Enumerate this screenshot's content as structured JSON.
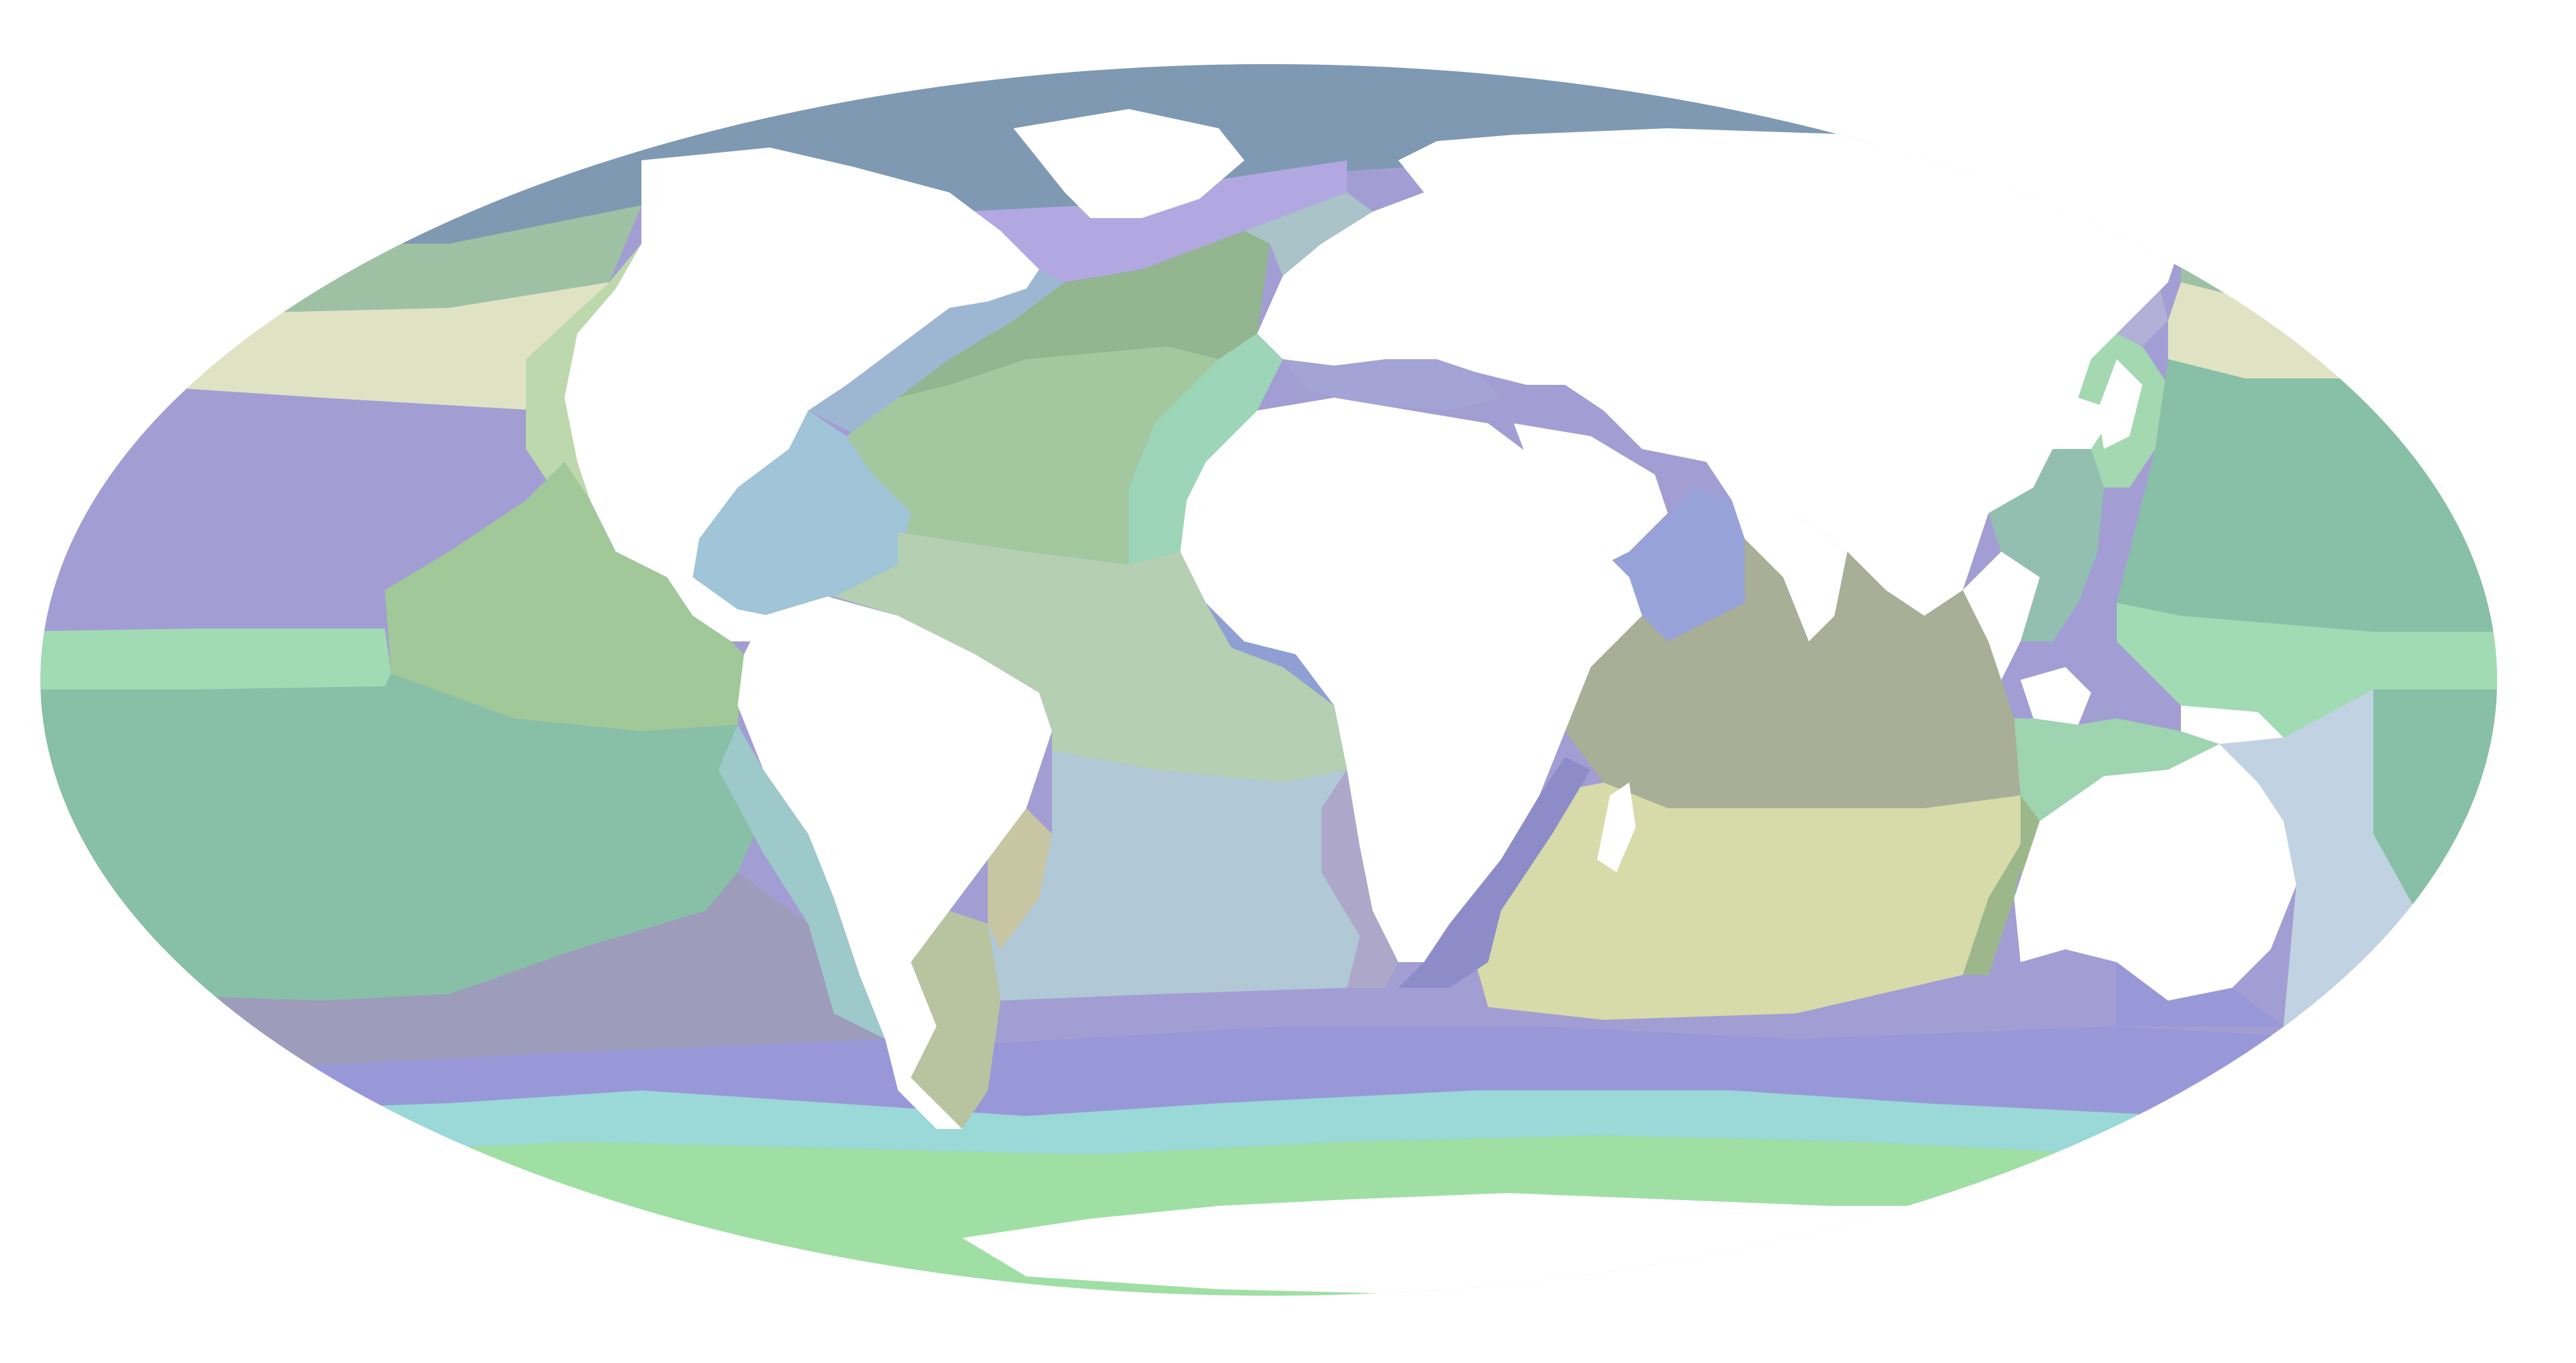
{
  "map": {
    "projection": "Mollweide",
    "land_color": "#ffffff",
    "background_color": "#ffffff",
    "ocean_regions": [
      {
        "id": "arctic",
        "color": "#7f99b3"
      },
      {
        "id": "north-atlantic-subpolar",
        "color": "#b1a8e2"
      },
      {
        "id": "labrador-shelf",
        "color": "#9db7d3"
      },
      {
        "id": "north-atlantic-drift",
        "color": "#93b58f"
      },
      {
        "id": "north-atlantic-subtropical",
        "color": "#a3c8a0"
      },
      {
        "id": "canary-current",
        "color": "#9dd5b8"
      },
      {
        "id": "gulf-of-mexico-caribbean",
        "color": "#a0c4d8"
      },
      {
        "id": "north-atlantic-tropical",
        "color": "#b4cfb2"
      },
      {
        "id": "guinea-current",
        "color": "#8f9fd3"
      },
      {
        "id": "south-atlantic-subtropical",
        "color": "#b1c8d6"
      },
      {
        "id": "benguela-current",
        "color": "#ada8c9"
      },
      {
        "id": "brazil-current",
        "color": "#c8c6a2"
      },
      {
        "id": "mediterranean",
        "color": "#a4a3d5"
      },
      {
        "id": "north-sea",
        "color": "#a9c3c8"
      },
      {
        "id": "north-pacific-subpolar-east",
        "color": "#9ec1a4"
      },
      {
        "id": "north-pacific-transition-east",
        "color": "#dfe3c4"
      },
      {
        "id": "north-pacific-subtropical",
        "color": "#a29ed3"
      },
      {
        "id": "california-current",
        "color": "#bcd8ac"
      },
      {
        "id": "eastern-tropical-pacific",
        "color": "#a0c898"
      },
      {
        "id": "pacific-equatorial",
        "color": "#a1dbb4"
      },
      {
        "id": "south-pacific-subtropical",
        "color": "#88bfa7"
      },
      {
        "id": "humboldt-current",
        "color": "#9ec9cb"
      },
      {
        "id": "south-pacific-transition",
        "color": "#9d9cba"
      },
      {
        "id": "subantarctic",
        "color": "#9898d8"
      },
      {
        "id": "polar-front",
        "color": "#9bd8d8"
      },
      {
        "id": "antarctic",
        "color": "#9fdfa4"
      },
      {
        "id": "patagonian-shelf",
        "color": "#b8c4a0"
      },
      {
        "id": "arabian-sea",
        "color": "#97a3d8"
      },
      {
        "id": "bay-of-bengal",
        "color": "#a9ae96"
      },
      {
        "id": "indian-monsoon-gyre",
        "color": "#a9ae96"
      },
      {
        "id": "indian-south-subtropical",
        "color": "#d6dba9"
      },
      {
        "id": "agulhas-current",
        "color": "#8e8cc8"
      },
      {
        "id": "leeuwin-current",
        "color": "#9cb88a"
      },
      {
        "id": "indonesian-throughflow",
        "color": "#9ed4b0"
      },
      {
        "id": "south-china-sea",
        "color": "#93bfb1"
      },
      {
        "id": "kuroshio",
        "color": "#a3d8b0"
      },
      {
        "id": "sea-of-okhotsk-japan",
        "color": "#b2b0d6"
      },
      {
        "id": "north-pacific-subpolar-west",
        "color": "#9ec1a4"
      },
      {
        "id": "north-pacific-transition-west",
        "color": "#dfe3c4"
      },
      {
        "id": "coral-sea-tasman",
        "color": "#c1d3e2"
      },
      {
        "id": "western-pacific-warm-pool",
        "color": "#88bfa7"
      }
    ]
  }
}
